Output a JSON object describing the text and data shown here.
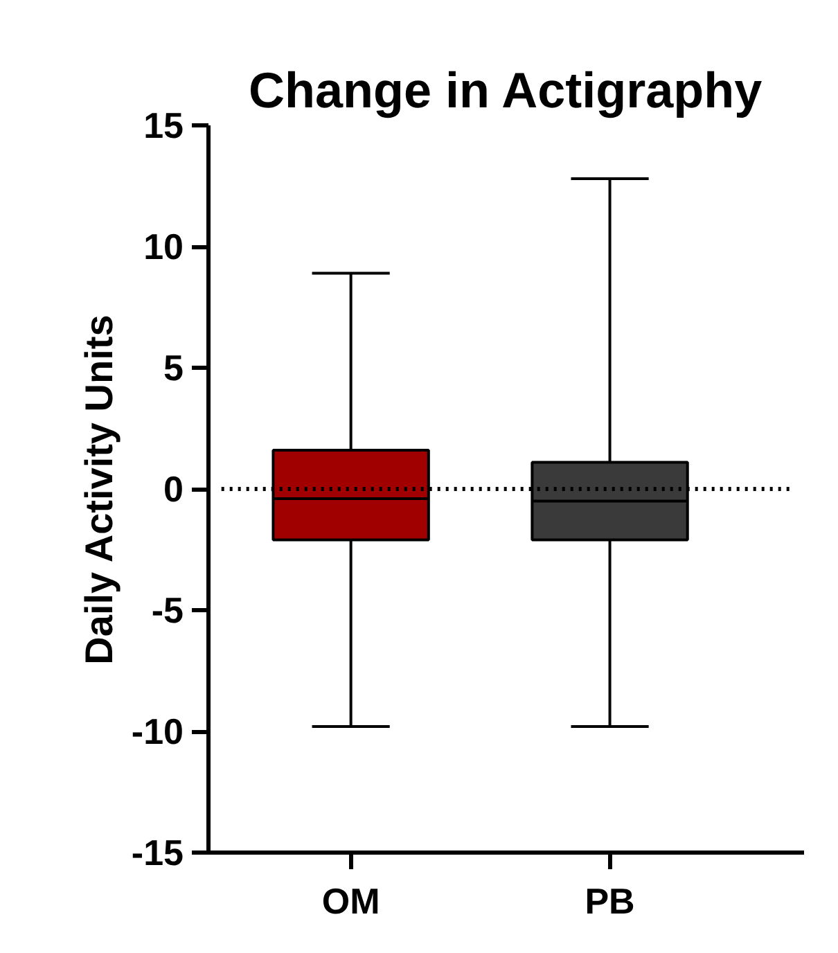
{
  "chart_data": {
    "type": "box",
    "title": "Change in Actigraphy",
    "ylabel": "Daily Activity Units",
    "categories": [
      "OM",
      "PB"
    ],
    "colors": [
      "#a00000",
      "#3a3a3a"
    ],
    "boxes": [
      {
        "low": -9.8,
        "q1": -2.1,
        "median": -0.4,
        "q3": 1.6,
        "high": 8.9
      },
      {
        "low": -9.8,
        "q1": -2.1,
        "median": -0.5,
        "q3": 1.1,
        "high": 12.8
      }
    ],
    "ylim": [
      -15,
      15
    ],
    "yticks": [
      -15,
      -10,
      -5,
      0,
      5,
      10,
      15
    ],
    "ref_lines": [
      {
        "axis": "y",
        "value": 0,
        "line_style": "dotted"
      }
    ],
    "grid": false
  }
}
